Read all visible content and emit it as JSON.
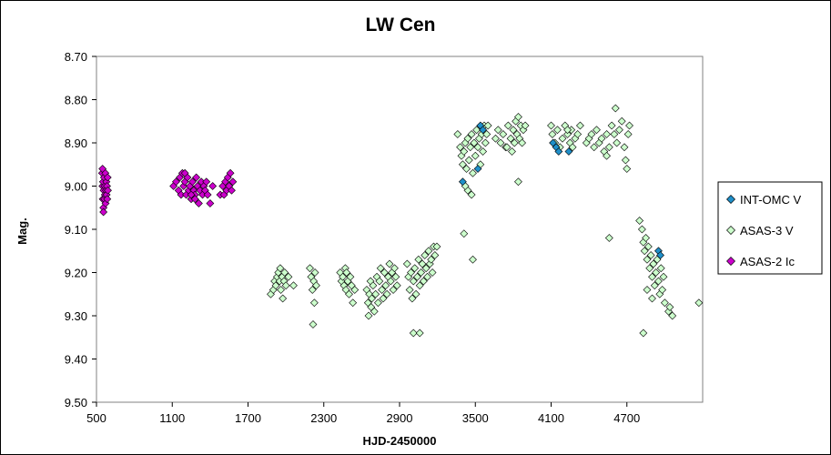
{
  "chart_data": {
    "type": "scatter",
    "title": "LW Cen",
    "xlabel": "HJD-2450000",
    "ylabel": "Mag.",
    "xlim": [
      500,
      5300
    ],
    "ylim": [
      8.7,
      9.5
    ],
    "y_inverted": true,
    "xticks": [
      "500",
      "1100",
      "1700",
      "2300",
      "2900",
      "3500",
      "4100",
      "4700"
    ],
    "yticks": [
      "8.70",
      "8.80",
      "8.90",
      "9.00",
      "9.10",
      "9.20",
      "9.30",
      "9.40",
      "9.50"
    ],
    "legend_position": "right",
    "series": [
      {
        "name": "INT-OMC V",
        "color": "#1f8fc9",
        "marker": "diamond-filled",
        "points": [
          [
            3400,
            8.99
          ],
          [
            3520,
            8.96
          ],
          [
            3540,
            8.86
          ],
          [
            3560,
            8.87
          ],
          [
            4115,
            8.9
          ],
          [
            4140,
            8.91
          ],
          [
            4160,
            8.92
          ],
          [
            4240,
            8.92
          ],
          [
            4950,
            9.15
          ],
          [
            4965,
            9.16
          ]
        ]
      },
      {
        "name": "ASAS-3 V",
        "color": "#ccffcc",
        "marker": "diamond-open",
        "points": [
          [
            1880,
            9.25
          ],
          [
            1900,
            9.24
          ],
          [
            1910,
            9.22
          ],
          [
            1920,
            9.23
          ],
          [
            1930,
            9.21
          ],
          [
            1940,
            9.2
          ],
          [
            1950,
            9.22
          ],
          [
            1955,
            9.19
          ],
          [
            1960,
            9.24
          ],
          [
            1970,
            9.21
          ],
          [
            1975,
            9.26
          ],
          [
            1985,
            9.22
          ],
          [
            1990,
            9.2
          ],
          [
            2000,
            9.23
          ],
          [
            2020,
            9.21
          ],
          [
            2060,
            9.23
          ],
          [
            2190,
            9.19
          ],
          [
            2200,
            9.21
          ],
          [
            2210,
            9.24
          ],
          [
            2220,
            9.22
          ],
          [
            2225,
            9.27
          ],
          [
            2230,
            9.2
          ],
          [
            2240,
            9.23
          ],
          [
            2215,
            9.32
          ],
          [
            2430,
            9.2
          ],
          [
            2440,
            9.22
          ],
          [
            2450,
            9.21
          ],
          [
            2460,
            9.23
          ],
          [
            2470,
            9.19
          ],
          [
            2475,
            9.24
          ],
          [
            2480,
            9.2
          ],
          [
            2490,
            9.22
          ],
          [
            2500,
            9.25
          ],
          [
            2510,
            9.21
          ],
          [
            2520,
            9.23
          ],
          [
            2530,
            9.27
          ],
          [
            2545,
            9.24
          ],
          [
            2640,
            9.24
          ],
          [
            2650,
            9.27
          ],
          [
            2655,
            9.3
          ],
          [
            2660,
            9.25
          ],
          [
            2670,
            9.22
          ],
          [
            2675,
            9.28
          ],
          [
            2680,
            9.26
          ],
          [
            2690,
            9.23
          ],
          [
            2700,
            9.29
          ],
          [
            2710,
            9.25
          ],
          [
            2720,
            9.21
          ],
          [
            2730,
            9.27
          ],
          [
            2740,
            9.22
          ],
          [
            2750,
            9.19
          ],
          [
            2760,
            9.24
          ],
          [
            2770,
            9.26
          ],
          [
            2780,
            9.2
          ],
          [
            2790,
            9.23
          ],
          [
            2800,
            9.25
          ],
          [
            2810,
            9.21
          ],
          [
            2820,
            9.18
          ],
          [
            2830,
            9.22
          ],
          [
            2840,
            9.2
          ],
          [
            2850,
            9.24
          ],
          [
            2860,
            9.19
          ],
          [
            2870,
            9.21
          ],
          [
            2880,
            9.23
          ],
          [
            2960,
            9.18
          ],
          [
            2970,
            9.21
          ],
          [
            2980,
            9.24
          ],
          [
            2990,
            9.2
          ],
          [
            3000,
            9.26
          ],
          [
            3010,
            9.22
          ],
          [
            3020,
            9.19
          ],
          [
            3030,
            9.25
          ],
          [
            3040,
            9.21
          ],
          [
            3050,
            9.17
          ],
          [
            3060,
            9.23
          ],
          [
            3070,
            9.2
          ],
          [
            3080,
            9.18
          ],
          [
            3090,
            9.22
          ],
          [
            3100,
            9.16
          ],
          [
            3110,
            9.19
          ],
          [
            3120,
            9.21
          ],
          [
            3130,
            9.15
          ],
          [
            3140,
            9.18
          ],
          [
            3150,
            9.17
          ],
          [
            3160,
            9.2
          ],
          [
            3170,
            9.14
          ],
          [
            3180,
            9.16
          ],
          [
            3195,
            9.14
          ],
          [
            3010,
            9.34
          ],
          [
            3060,
            9.34
          ],
          [
            3360,
            8.88
          ],
          [
            3380,
            8.91
          ],
          [
            3390,
            8.93
          ],
          [
            3400,
            8.95
          ],
          [
            3410,
            8.92
          ],
          [
            3420,
            8.9
          ],
          [
            3430,
            8.96
          ],
          [
            3440,
            8.89
          ],
          [
            3450,
            8.94
          ],
          [
            3460,
            8.91
          ],
          [
            3470,
            8.88
          ],
          [
            3480,
            8.97
          ],
          [
            3490,
            8.9
          ],
          [
            3500,
            8.93
          ],
          [
            3510,
            8.87
          ],
          [
            3520,
            8.91
          ],
          [
            3530,
            8.89
          ],
          [
            3540,
            8.95
          ],
          [
            3550,
            8.88
          ],
          [
            3560,
            8.92
          ],
          [
            3570,
            8.86
          ],
          [
            3580,
            8.9
          ],
          [
            3590,
            8.88
          ],
          [
            3600,
            8.86
          ],
          [
            3410,
            9.11
          ],
          [
            3440,
            9.01
          ],
          [
            3470,
            9.02
          ],
          [
            3480,
            9.17
          ],
          [
            3420,
            9.0
          ],
          [
            3660,
            8.89
          ],
          [
            3680,
            8.87
          ],
          [
            3700,
            8.9
          ],
          [
            3720,
            8.88
          ],
          [
            3740,
            8.91
          ],
          [
            3760,
            8.86
          ],
          [
            3780,
            8.89
          ],
          [
            3790,
            8.92
          ],
          [
            3800,
            8.87
          ],
          [
            3810,
            8.9
          ],
          [
            3820,
            8.85
          ],
          [
            3830,
            8.88
          ],
          [
            3840,
            8.84
          ],
          [
            3850,
            8.89
          ],
          [
            3860,
            8.86
          ],
          [
            3870,
            8.9
          ],
          [
            3880,
            8.87
          ],
          [
            3895,
            8.86
          ],
          [
            3840,
            8.99
          ],
          [
            3750,
            8.91
          ],
          [
            4100,
            8.86
          ],
          [
            4110,
            8.88
          ],
          [
            4130,
            8.9
          ],
          [
            4150,
            8.87
          ],
          [
            4170,
            8.91
          ],
          [
            4190,
            8.89
          ],
          [
            4210,
            8.86
          ],
          [
            4230,
            8.88
          ],
          [
            4250,
            8.9
          ],
          [
            4260,
            8.87
          ],
          [
            4270,
            8.91
          ],
          [
            4290,
            8.89
          ],
          [
            4310,
            8.88
          ],
          [
            4330,
            8.86
          ],
          [
            4230,
            8.87
          ],
          [
            4380,
            8.9
          ],
          [
            4400,
            8.89
          ],
          [
            4420,
            8.88
          ],
          [
            4440,
            8.91
          ],
          [
            4460,
            8.87
          ],
          [
            4480,
            8.9
          ],
          [
            4500,
            8.89
          ],
          [
            4520,
            8.92
          ],
          [
            4540,
            8.88
          ],
          [
            4560,
            8.91
          ],
          [
            4580,
            8.86
          ],
          [
            4600,
            8.88
          ],
          [
            4610,
            8.82
          ],
          [
            4620,
            8.9
          ],
          [
            4640,
            8.87
          ],
          [
            4660,
            8.85
          ],
          [
            4680,
            8.91
          ],
          [
            4690,
            8.94
          ],
          [
            4700,
            8.96
          ],
          [
            4710,
            8.88
          ],
          [
            4720,
            8.86
          ],
          [
            4560,
            9.12
          ],
          [
            4540,
            8.93
          ],
          [
            4800,
            9.08
          ],
          [
            4820,
            9.1
          ],
          [
            4830,
            9.13
          ],
          [
            4840,
            9.15
          ],
          [
            4850,
            9.12
          ],
          [
            4860,
            9.17
          ],
          [
            4870,
            9.14
          ],
          [
            4880,
            9.19
          ],
          [
            4890,
            9.16
          ],
          [
            4900,
            9.21
          ],
          [
            4910,
            9.18
          ],
          [
            4920,
            9.23
          ],
          [
            4930,
            9.2
          ],
          [
            4940,
            9.17
          ],
          [
            4950,
            9.22
          ],
          [
            4960,
            9.25
          ],
          [
            4970,
            9.19
          ],
          [
            4980,
            9.24
          ],
          [
            4990,
            9.21
          ],
          [
            5000,
            9.27
          ],
          [
            4860,
            9.24
          ],
          [
            4900,
            9.26
          ],
          [
            4830,
            9.34
          ],
          [
            5030,
            9.29
          ],
          [
            5060,
            9.3
          ],
          [
            5040,
            9.28
          ],
          [
            5270,
            9.27
          ]
        ]
      },
      {
        "name": "ASAS-2 Ic",
        "color": "#cc00cc",
        "marker": "diamond-filled",
        "points": [
          [
            545,
            8.97
          ],
          [
            548,
            9.0
          ],
          [
            550,
            9.03
          ],
          [
            552,
            8.99
          ],
          [
            555,
            9.05
          ],
          [
            557,
            9.01
          ],
          [
            560,
            8.98
          ],
          [
            562,
            9.03
          ],
          [
            565,
            9.0
          ],
          [
            567,
            9.02
          ],
          [
            570,
            8.97
          ],
          [
            572,
            9.04
          ],
          [
            575,
            9.01
          ],
          [
            578,
            8.99
          ],
          [
            580,
            9.02
          ],
          [
            583,
            9.0
          ],
          [
            585,
            9.03
          ],
          [
            588,
            8.98
          ],
          [
            590,
            9.01
          ],
          [
            555,
            9.06
          ],
          [
            548,
            8.96
          ],
          [
            1110,
            9.0
          ],
          [
            1130,
            8.99
          ],
          [
            1150,
            9.01
          ],
          [
            1160,
            8.98
          ],
          [
            1170,
            9.02
          ],
          [
            1180,
            8.97
          ],
          [
            1190,
            9.0
          ],
          [
            1200,
            8.99
          ],
          [
            1210,
            9.02
          ],
          [
            1220,
            8.98
          ],
          [
            1230,
            9.01
          ],
          [
            1240,
            9.0
          ],
          [
            1250,
            9.03
          ],
          [
            1260,
            8.99
          ],
          [
            1270,
            9.01
          ],
          [
            1280,
            9.02
          ],
          [
            1290,
            8.98
          ],
          [
            1300,
            9.0
          ],
          [
            1310,
            9.04
          ],
          [
            1320,
            9.01
          ],
          [
            1330,
            8.99
          ],
          [
            1340,
            9.02
          ],
          [
            1350,
            9.0
          ],
          [
            1360,
            9.01
          ],
          [
            1370,
            8.99
          ],
          [
            1380,
            9.02
          ],
          [
            1400,
            9.04
          ],
          [
            1420,
            9.0
          ],
          [
            1200,
            8.97
          ],
          [
            1250,
            9.02
          ],
          [
            1280,
            9.03
          ],
          [
            1480,
            9.02
          ],
          [
            1500,
            9.0
          ],
          [
            1510,
            9.02
          ],
          [
            1520,
            8.99
          ],
          [
            1530,
            9.01
          ],
          [
            1540,
            8.98
          ],
          [
            1550,
            9.0
          ],
          [
            1560,
            8.97
          ],
          [
            1570,
            9.01
          ],
          [
            1580,
            8.99
          ]
        ]
      }
    ]
  }
}
